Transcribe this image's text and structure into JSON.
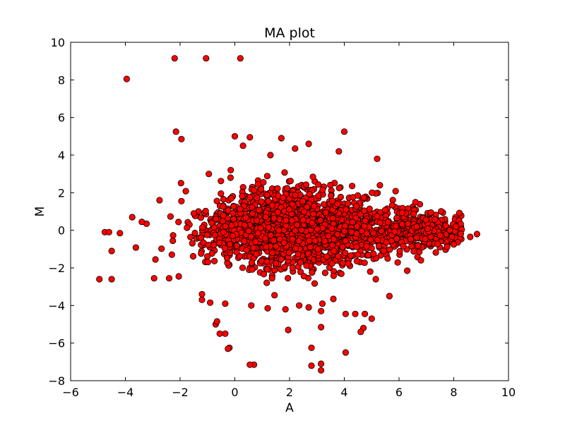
{
  "chart_data": {
    "type": "scatter",
    "title": "MA plot",
    "xlabel": "A",
    "ylabel": "M",
    "xlim": [
      -6,
      10
    ],
    "ylim": [
      -8,
      10
    ],
    "xticks": [
      "−6",
      "−4",
      "−2",
      "0",
      "2",
      "4",
      "6",
      "8",
      "10"
    ],
    "yticks": [
      "−8",
      "−6",
      "−4",
      "−2",
      "0",
      "2",
      "4",
      "6",
      "8",
      "10"
    ],
    "grid": false,
    "legend": "none",
    "marker_color": "#ff0000",
    "marker_edge": "#000000",
    "series": [
      {
        "points": [
          [
            -2.2,
            9.15
          ],
          [
            -1.05,
            9.15
          ],
          [
            0.2,
            9.15
          ],
          [
            -3.95,
            8.05
          ],
          [
            -2.15,
            5.25
          ],
          [
            -1.95,
            4.85
          ],
          [
            4.0,
            5.25
          ],
          [
            0.55,
            4.95
          ],
          [
            0.0,
            5.0
          ],
          [
            1.7,
            4.9
          ],
          [
            2.7,
            4.6
          ],
          [
            3.8,
            4.2
          ],
          [
            -4.75,
            -0.1
          ],
          [
            -4.6,
            -0.1
          ],
          [
            -4.2,
            -0.15
          ],
          [
            -4.5,
            -1.1
          ],
          [
            -4.95,
            -2.6
          ],
          [
            -4.5,
            -2.6
          ],
          [
            -3.75,
            0.7
          ],
          [
            -3.4,
            0.45
          ],
          [
            -2.75,
            1.6
          ],
          [
            -2.9,
            -1.55
          ],
          [
            -2.95,
            -2.55
          ],
          [
            -2.4,
            -2.55
          ],
          [
            -2.05,
            -2.45
          ],
          [
            -1.95,
            1.55
          ],
          [
            -1.5,
            0.9
          ],
          [
            8.85,
            -0.2
          ],
          [
            8.6,
            -0.35
          ],
          [
            8.0,
            -0.75
          ],
          [
            6.3,
            -2.15
          ],
          [
            6.8,
            -1.6
          ],
          [
            6.6,
            1.5
          ],
          [
            5.65,
            -3.5
          ],
          [
            5.3,
            2.4
          ],
          [
            5.2,
            3.8
          ],
          [
            5.15,
            -2.6
          ],
          [
            5.0,
            -4.7
          ],
          [
            4.75,
            -4.45
          ],
          [
            4.7,
            -5.2
          ],
          [
            4.6,
            -5.4
          ],
          [
            4.4,
            -4.45
          ],
          [
            4.05,
            -4.45
          ],
          [
            4.05,
            -6.5
          ],
          [
            3.2,
            -3.9
          ],
          [
            3.15,
            -4.3
          ],
          [
            3.15,
            -5.15
          ],
          [
            3.15,
            -7.1
          ],
          [
            3.15,
            -7.45
          ],
          [
            2.8,
            -6.25
          ],
          [
            2.8,
            -7.2
          ],
          [
            2.7,
            -4.1
          ],
          [
            1.95,
            -5.3
          ],
          [
            1.85,
            -4.2
          ],
          [
            1.2,
            -4.15
          ],
          [
            0.7,
            -7.15
          ],
          [
            0.55,
            -7.15
          ],
          [
            0.6,
            -4.0
          ],
          [
            -0.2,
            -6.25
          ],
          [
            -0.25,
            -6.3
          ],
          [
            -0.35,
            -5.5
          ],
          [
            -0.55,
            -5.5
          ],
          [
            -0.7,
            -5.0
          ],
          [
            -0.65,
            -4.85
          ],
          [
            -0.35,
            -3.9
          ],
          [
            -0.9,
            -3.85
          ],
          [
            -1.2,
            -3.7
          ],
          [
            -1.2,
            -3.4
          ],
          [
            1.45,
            -3.45
          ],
          [
            2.35,
            -4.0
          ],
          [
            3.6,
            -3.65
          ],
          [
            -0.15,
            3.2
          ],
          [
            -0.95,
            3.0
          ],
          [
            0.3,
            4.5
          ],
          [
            1.3,
            4.0
          ],
          [
            2.2,
            4.35
          ]
        ]
      }
    ],
    "cloud": {
      "count": 2400,
      "center_x": 1.9,
      "center_y": 0.1,
      "spread_x": 1.45,
      "spread_y": 1.05,
      "tail_x_max": 8.3,
      "seed": 7
    }
  }
}
